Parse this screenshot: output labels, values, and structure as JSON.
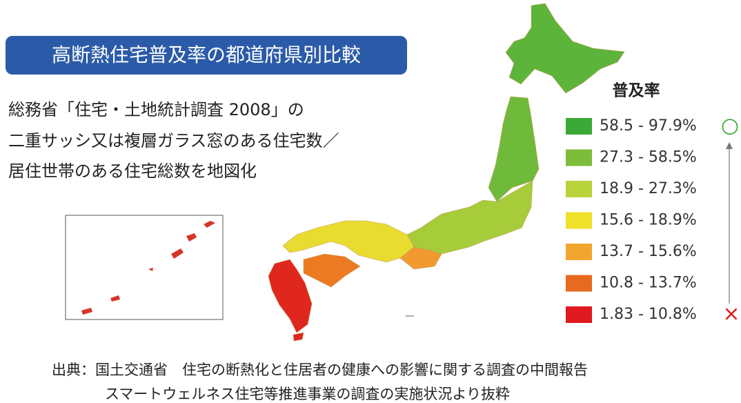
{
  "title_badge": "高断熱住宅普及率の都道府県別比較",
  "description": [
    "総務省「住宅・土地統計調査 2008」の",
    "二重サッシ又は複層ガラス窓のある住宅数／",
    "居住世帯のある住宅総数を地図化"
  ],
  "legend": {
    "title": "普及率",
    "items": [
      {
        "label": "58.5 - 97.9%",
        "color": "#3aa935"
      },
      {
        "label": "27.3 - 58.5%",
        "color": "#7cbd3a"
      },
      {
        "label": "18.9 - 27.3%",
        "color": "#b9d33a"
      },
      {
        "label": "15.6 - 18.9%",
        "color": "#efe02a"
      },
      {
        "label": "13.7 - 15.6%",
        "color": "#f2a630"
      },
      {
        "label": "10.8 - 13.7%",
        "color": "#e86a1e"
      },
      {
        "label": "1.83 - 10.8%",
        "color": "#e0191e"
      }
    ],
    "top_marker": "○",
    "bottom_marker": "×"
  },
  "source": [
    "出典：国土交通省　住宅の断熱化と住居者の健康への影響に関する調査の中間報告",
    "スマートウェルネス住宅等推進事業の調査の実施状況より抜粋"
  ]
}
